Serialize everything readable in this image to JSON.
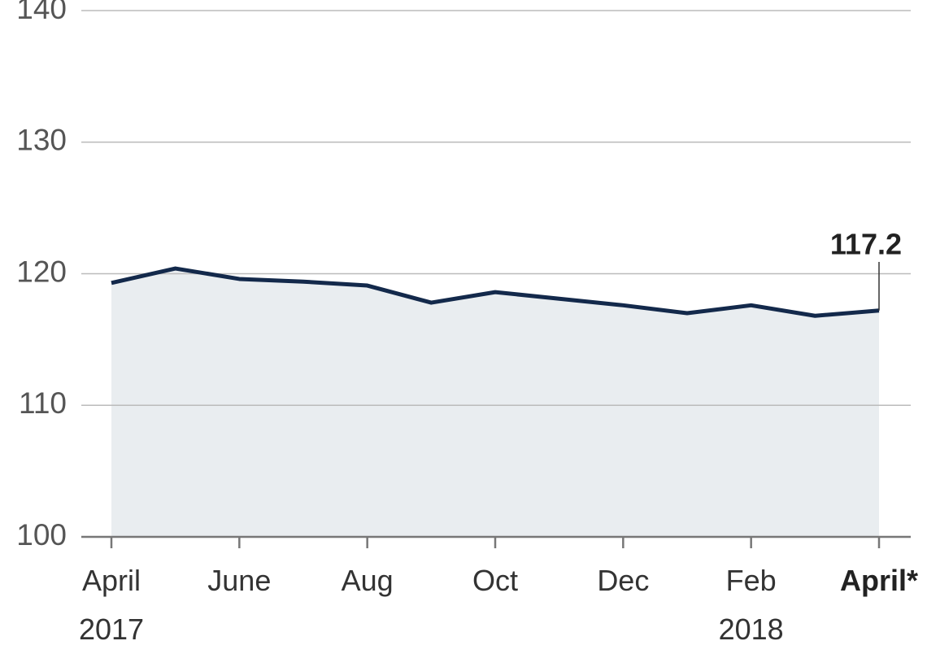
{
  "chart_data": {
    "type": "line",
    "categories": [
      "April\n2017",
      null,
      "June",
      null,
      "Aug",
      null,
      "Oct",
      null,
      "Dec",
      null,
      "Feb\n2018",
      null,
      "April*"
    ],
    "series": [
      {
        "color": "#13294b",
        "fill": "#e9edf0",
        "values": [
          119.3,
          120.4,
          119.6,
          119.4,
          119.1,
          117.8,
          118.6,
          118.1,
          117.6,
          117.0,
          117.6,
          116.8,
          117.2
        ]
      }
    ],
    "ylim": [
      100,
      140
    ],
    "yticks": [
      100,
      110,
      120,
      130,
      140
    ],
    "grid": true
  }
}
